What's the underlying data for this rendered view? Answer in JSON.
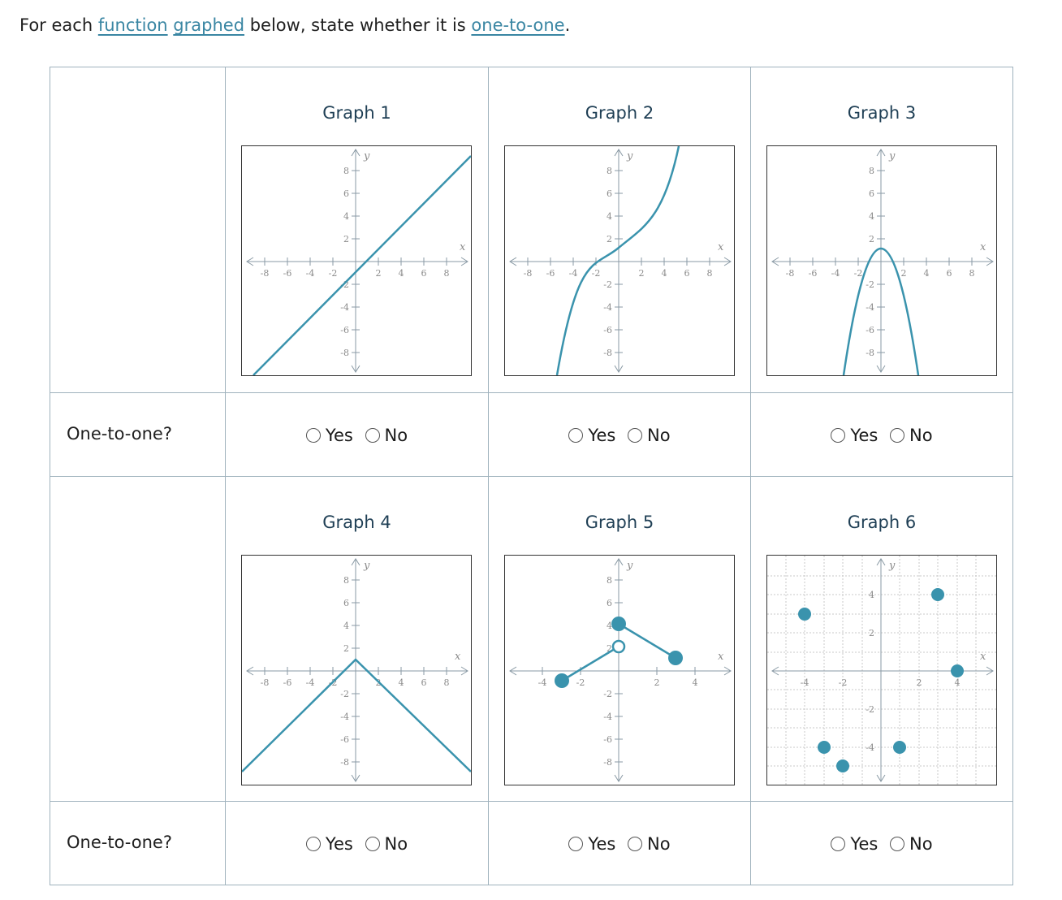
{
  "prompt": {
    "before": "For each ",
    "link1": "function",
    "link2": "graphed",
    "middle": " below, state whether it is ",
    "link3": "one-to-one",
    "after": "."
  },
  "row_label": "One-to-one?",
  "options": {
    "yes": "Yes",
    "no": "No"
  },
  "colors": {
    "curve": "#3a93ad",
    "axis": "#8a9aa5",
    "border": "#9fb2bd"
  },
  "axis_names": {
    "x": "x",
    "y": "y"
  },
  "graphs": [
    {
      "title": "Graph 1",
      "x_ticks": [
        "-8",
        "-6",
        "-4",
        "-2",
        "2",
        "4",
        "6",
        "8"
      ],
      "y_ticks": [
        "8",
        "6",
        "4",
        "2",
        "-2",
        "-4",
        "-6",
        "-8"
      ]
    },
    {
      "title": "Graph 2",
      "x_ticks": [
        "-8",
        "-6",
        "-4",
        "-2",
        "2",
        "4",
        "6",
        "8"
      ],
      "y_ticks": [
        "8",
        "6",
        "4",
        "2",
        "-2",
        "-4",
        "-6",
        "-8"
      ]
    },
    {
      "title": "Graph 3",
      "x_ticks": [
        "-8",
        "-6",
        "-4",
        "-2",
        "2",
        "4",
        "6",
        "8"
      ],
      "y_ticks": [
        "8",
        "6",
        "4",
        "2",
        "-2",
        "-4",
        "-6",
        "-8"
      ]
    },
    {
      "title": "Graph 4",
      "x_ticks": [
        "-8",
        "-6",
        "-4",
        "-2",
        "2",
        "4",
        "6",
        "8"
      ],
      "y_ticks": [
        "8",
        "6",
        "4",
        "2",
        "-2",
        "-4",
        "-6",
        "-8"
      ]
    },
    {
      "title": "Graph 5",
      "x_ticks": [
        "-4",
        "-2",
        "2",
        "4"
      ],
      "y_ticks": [
        "8",
        "6",
        "4",
        "2",
        "-2",
        "-4",
        "-6",
        "-8"
      ]
    },
    {
      "title": "Graph 6",
      "x_ticks": [
        "-4",
        "-2",
        "2",
        "4"
      ],
      "y_ticks": [
        "4",
        "2",
        "-2",
        "-4"
      ]
    }
  ]
}
